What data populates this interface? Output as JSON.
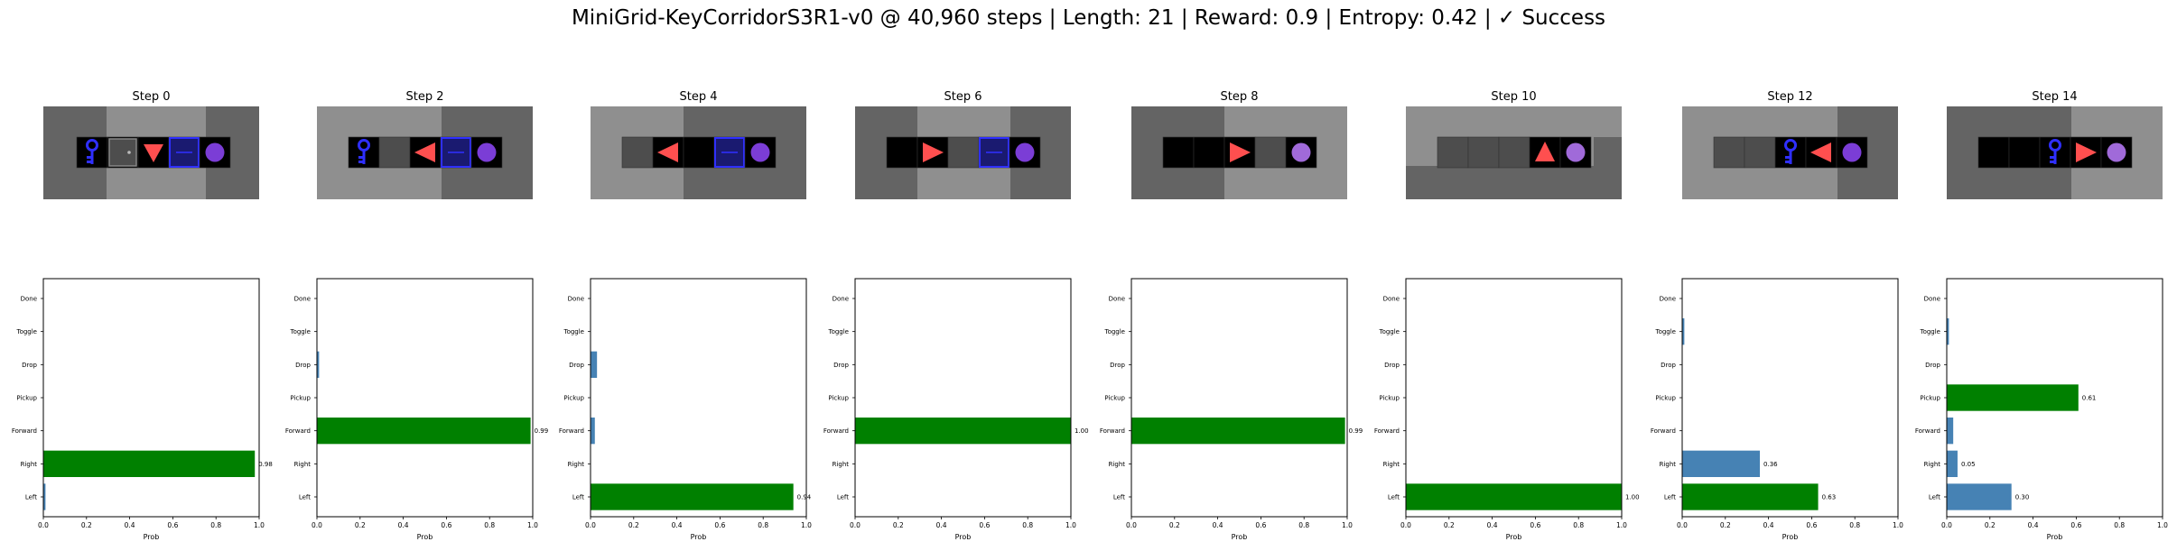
{
  "suptitle": "MiniGrid-KeyCorridorS3R1-v0 @ 40,960 steps | Length: 21 | Reward: 0.9 | Entropy: 0.42 | ✓ Success",
  "colors": {
    "chosen": "#008000",
    "other": "#4682b4",
    "floor": "#000000",
    "wall": "#646464",
    "unseen_dark": "#646464",
    "unseen_light": "#8f8f8f",
    "tile": "#4d4d4d",
    "agent": "#ff4f4f",
    "key": "#2f2fff",
    "ball": "#7b3dd6",
    "ball_light": "#a06ad9",
    "door": "#2f2fff"
  },
  "frames": [
    {
      "title": "Step 0",
      "agent_dir": "down",
      "cells": [
        "key",
        "door-locked",
        "agent",
        "door-open",
        "ball"
      ]
    },
    {
      "title": "Step 2",
      "agent_dir": "left",
      "cells": [
        "key",
        "tile",
        "agent",
        "door-open",
        "ball"
      ]
    },
    {
      "title": "Step 4",
      "agent_dir": "left",
      "cells": [
        "tile",
        "agent",
        "floor",
        "door-open",
        "ball"
      ]
    },
    {
      "title": "Step 6",
      "agent_dir": "right",
      "cells": [
        "floor",
        "agent",
        "tile",
        "door-open",
        "ball"
      ]
    },
    {
      "title": "Step 8",
      "agent_dir": "right",
      "cells": [
        "floor",
        "floor",
        "agent",
        "tile",
        "ball-light"
      ]
    },
    {
      "title": "Step 10",
      "agent_dir": "up",
      "cells": [
        "tile",
        "tile",
        "tile",
        "agent",
        "ball-light"
      ]
    },
    {
      "title": "Step 12",
      "agent_dir": "left",
      "cells": [
        "tile",
        "tile",
        "key",
        "agent",
        "ball"
      ]
    },
    {
      "title": "Step 14",
      "agent_dir": "right",
      "cells": [
        "floor",
        "floor",
        "key",
        "agent",
        "ball-light"
      ]
    }
  ],
  "chart_data": [
    {
      "type": "bar",
      "orientation": "horizontal",
      "xlabel": "Prob",
      "xlim": [
        0,
        1.0
      ],
      "xticks": [
        "0.0",
        "0.2",
        "0.4",
        "0.6",
        "0.8",
        "1.0"
      ],
      "categories": [
        "Left",
        "Right",
        "Forward",
        "Pickup",
        "Drop",
        "Toggle",
        "Done"
      ],
      "values": [
        0.01,
        0.98,
        0,
        0,
        0,
        0,
        0
      ],
      "chosen": 1,
      "labels": [
        "",
        "0.98",
        "",
        "",
        "",
        "",
        ""
      ]
    },
    {
      "type": "bar",
      "orientation": "horizontal",
      "xlabel": "Prob",
      "xlim": [
        0,
        1.0
      ],
      "xticks": [
        "0.0",
        "0.2",
        "0.4",
        "0.6",
        "0.8",
        "1.0"
      ],
      "categories": [
        "Left",
        "Right",
        "Forward",
        "Pickup",
        "Drop",
        "Toggle",
        "Done"
      ],
      "values": [
        0,
        0,
        0.99,
        0,
        0.01,
        0,
        0
      ],
      "chosen": 2,
      "labels": [
        "",
        "",
        "0.99",
        "",
        "",
        "",
        ""
      ]
    },
    {
      "type": "bar",
      "orientation": "horizontal",
      "xlabel": "Prob",
      "xlim": [
        0,
        1.0
      ],
      "xticks": [
        "0.0",
        "0.2",
        "0.4",
        "0.6",
        "0.8",
        "1.0"
      ],
      "categories": [
        "Left",
        "Right",
        "Forward",
        "Pickup",
        "Drop",
        "Toggle",
        "Done"
      ],
      "values": [
        0.94,
        0,
        0.02,
        0,
        0.03,
        0,
        0
      ],
      "chosen": 0,
      "labels": [
        "0.94",
        "",
        "",
        "",
        "",
        "",
        ""
      ]
    },
    {
      "type": "bar",
      "orientation": "horizontal",
      "xlabel": "Prob",
      "xlim": [
        0,
        1.0
      ],
      "xticks": [
        "0.0",
        "0.2",
        "0.4",
        "0.6",
        "0.8",
        "1.0"
      ],
      "categories": [
        "Left",
        "Right",
        "Forward",
        "Pickup",
        "Drop",
        "Toggle",
        "Done"
      ],
      "values": [
        0,
        0,
        1.0,
        0,
        0,
        0,
        0
      ],
      "chosen": 2,
      "labels": [
        "",
        "",
        "1.00",
        "",
        "",
        "",
        ""
      ]
    },
    {
      "type": "bar",
      "orientation": "horizontal",
      "xlabel": "Prob",
      "xlim": [
        0,
        1.0
      ],
      "xticks": [
        "0.0",
        "0.2",
        "0.4",
        "0.6",
        "0.8",
        "1.0"
      ],
      "categories": [
        "Left",
        "Right",
        "Forward",
        "Pickup",
        "Drop",
        "Toggle",
        "Done"
      ],
      "values": [
        0,
        0,
        0.99,
        0,
        0,
        0,
        0
      ],
      "chosen": 2,
      "labels": [
        "",
        "",
        "0.99",
        "",
        "",
        "",
        ""
      ]
    },
    {
      "type": "bar",
      "orientation": "horizontal",
      "xlabel": "Prob",
      "xlim": [
        0,
        1.0
      ],
      "xticks": [
        "0.0",
        "0.2",
        "0.4",
        "0.6",
        "0.8",
        "1.0"
      ],
      "categories": [
        "Left",
        "Right",
        "Forward",
        "Pickup",
        "Drop",
        "Toggle",
        "Done"
      ],
      "values": [
        1.0,
        0,
        0,
        0,
        0,
        0,
        0
      ],
      "chosen": 0,
      "labels": [
        "1.00",
        "",
        "",
        "",
        "",
        "",
        ""
      ]
    },
    {
      "type": "bar",
      "orientation": "horizontal",
      "xlabel": "Prob",
      "xlim": [
        0,
        1.0
      ],
      "xticks": [
        "0.0",
        "0.2",
        "0.4",
        "0.6",
        "0.8",
        "1.0"
      ],
      "categories": [
        "Left",
        "Right",
        "Forward",
        "Pickup",
        "Drop",
        "Toggle",
        "Done"
      ],
      "values": [
        0.63,
        0.36,
        0,
        0,
        0,
        0.01,
        0
      ],
      "chosen": 0,
      "labels": [
        "0.63",
        "0.36",
        "",
        "",
        "",
        "",
        ""
      ]
    },
    {
      "type": "bar",
      "orientation": "horizontal",
      "xlabel": "Prob",
      "xlim": [
        0,
        1.0
      ],
      "xticks": [
        "0.0",
        "0.2",
        "0.4",
        "0.6",
        "0.8",
        "1.0"
      ],
      "categories": [
        "Left",
        "Right",
        "Forward",
        "Pickup",
        "Drop",
        "Toggle",
        "Done"
      ],
      "values": [
        0.3,
        0.05,
        0.03,
        0.61,
        0,
        0.01,
        0
      ],
      "chosen": 3,
      "labels": [
        "0.30",
        "0.05",
        "",
        "0.61",
        "",
        "",
        ""
      ]
    }
  ]
}
